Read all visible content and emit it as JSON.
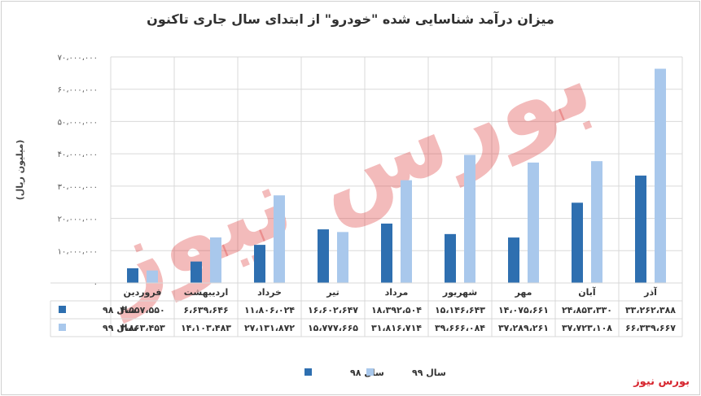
{
  "title": "میزان درآمد شناسایی شده \"خودرو\" از ابتدای سال جاری تاکنون",
  "brand": "بورس نیوز",
  "watermark": "بورس نیوز",
  "colors": {
    "series1": "#2e6fb0",
    "series2": "#a9c8ec",
    "grid": "#d9d9d9",
    "brand": "#d7262f"
  },
  "chart_data": {
    "type": "bar",
    "title": "میزان درآمد شناسایی شده \"خودرو\" از ابتدای سال جاری تاکنون",
    "ylabel": "(میلیون ریال)",
    "xlabel": "",
    "ylim": [
      0,
      70000000
    ],
    "yticks": [
      0,
      10000000,
      20000000,
      30000000,
      40000000,
      50000000,
      60000000,
      70000000
    ],
    "ytick_labels": [
      "۰",
      "۱۰،۰۰۰،۰۰۰",
      "۲۰،۰۰۰،۰۰۰",
      "۳۰،۰۰۰،۰۰۰",
      "۴۰،۰۰۰،۰۰۰",
      "۵۰،۰۰۰،۰۰۰",
      "۶۰،۰۰۰،۰۰۰",
      "۷۰،۰۰۰،۰۰۰"
    ],
    "grid": true,
    "legend_position": "bottom",
    "categories": [
      "فروردین",
      "اردیبهشت",
      "خرداد",
      "تیر",
      "مرداد",
      "شهریور",
      "مهر",
      "آبان",
      "آذر"
    ],
    "series": [
      {
        "name": "سال ۹۸",
        "values": [
          4557550,
          6639646,
          11806024,
          16602647,
          18392504,
          15146643,
          14075661,
          24853330,
          33262388
        ],
        "labels": [
          "۴،۵۵۷،۵۵۰",
          "۶،۶۳۹،۶۴۶",
          "۱۱،۸۰۶،۰۲۴",
          "۱۶،۶۰۲،۶۴۷",
          "۱۸،۳۹۲،۵۰۴",
          "۱۵،۱۴۶،۶۴۳",
          "۱۴،۰۷۵،۶۶۱",
          "۲۴،۸۵۳،۳۳۰",
          "۳۳،۲۶۲،۳۸۸"
        ]
      },
      {
        "name": "سال ۹۹",
        "values": [
          3863453,
          14103483,
          27131872,
          15777665,
          31816714,
          39666084,
          37289261,
          37723108,
          66339667
        ],
        "labels": [
          "۳،۸۶۳،۴۵۳",
          "۱۴،۱۰۳،۴۸۳",
          "۲۷،۱۳۱،۸۷۲",
          "۱۵،۷۷۷،۶۶۵",
          "۳۱،۸۱۶،۷۱۴",
          "۳۹،۶۶۶،۰۸۴",
          "۳۷،۲۸۹،۲۶۱",
          "۳۷،۷۲۳،۱۰۸",
          "۶۶،۳۳۹،۶۶۷"
        ]
      }
    ]
  }
}
